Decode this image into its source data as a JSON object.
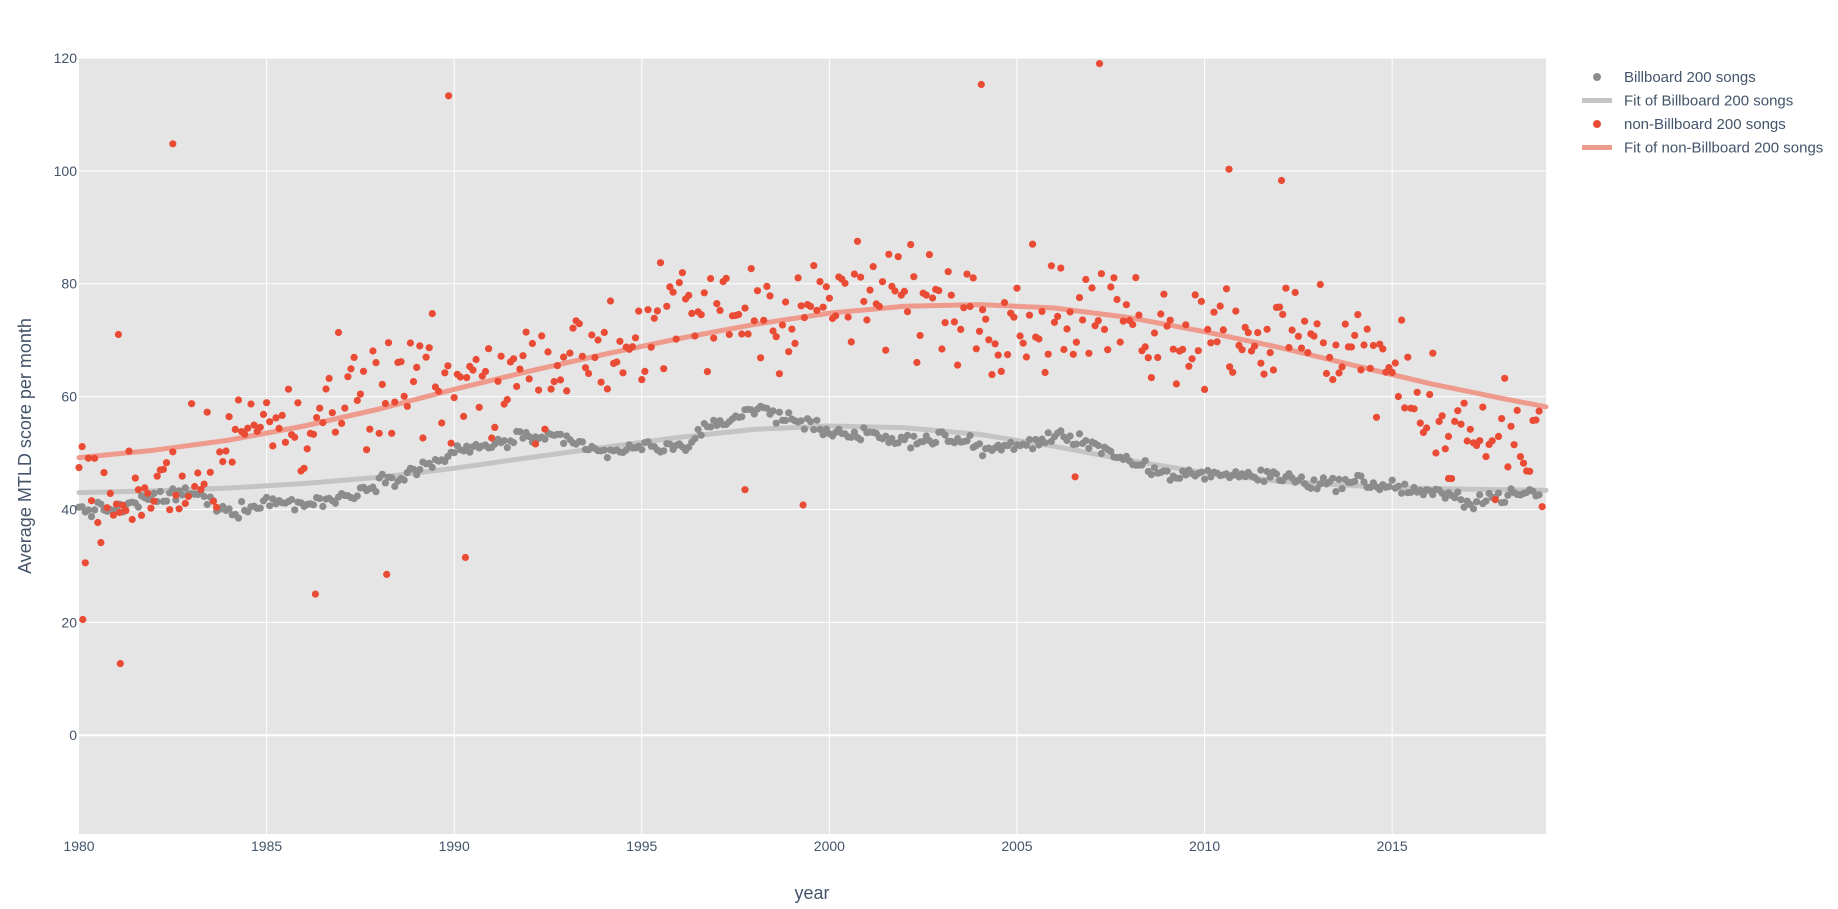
{
  "chart_data": {
    "type": "scatter",
    "xlabel": "year",
    "ylabel": "Average MTLD score per month",
    "xlim": [
      1980,
      2019.1
    ],
    "ylim": [
      -17.5,
      120
    ],
    "x_ticks": [
      "1980",
      "1985",
      "1990",
      "1995",
      "2000",
      "2005",
      "2010",
      "2015"
    ],
    "y_ticks": [
      "0",
      "20",
      "40",
      "60",
      "80",
      "100",
      "120"
    ],
    "grid": true,
    "legend_position": "top-right",
    "colors": {
      "billboard": "#8c8c8c",
      "billboard_fit": "#c4c4c4",
      "non_billboard": "#ea4b35",
      "non_billboard_fit": "#ee9a8c",
      "plot_bg": "#e5e5e5",
      "grid": "#ffffff",
      "text": "#44546a"
    },
    "series": [
      {
        "name": "Billboard 200 songs",
        "kind": "markers",
        "color": "#8c8c8c",
        "anchors": [
          [
            1980,
            40
          ],
          [
            1981,
            40
          ],
          [
            1982,
            42
          ],
          [
            1983,
            43
          ],
          [
            1984,
            39.5
          ],
          [
            1985,
            41.5
          ],
          [
            1986,
            41
          ],
          [
            1987,
            42
          ],
          [
            1988,
            45
          ],
          [
            1989,
            47
          ],
          [
            1990,
            50
          ],
          [
            1991,
            51.5
          ],
          [
            1992,
            53
          ],
          [
            1993,
            52
          ],
          [
            1994,
            50
          ],
          [
            1995,
            51
          ],
          [
            1996,
            51
          ],
          [
            1997,
            55
          ],
          [
            1998,
            58
          ],
          [
            1999,
            56
          ],
          [
            2000,
            54
          ],
          [
            2001,
            53
          ],
          [
            2002,
            52
          ],
          [
            2003,
            53
          ],
          [
            2004,
            51
          ],
          [
            2005,
            51
          ],
          [
            2006,
            53
          ],
          [
            2007,
            52
          ],
          [
            2008,
            48
          ],
          [
            2009,
            46
          ],
          [
            2010,
            46.5
          ],
          [
            2011,
            46
          ],
          [
            2012,
            46
          ],
          [
            2013,
            44.5
          ],
          [
            2014,
            45
          ],
          [
            2015,
            44
          ],
          [
            2016,
            43
          ],
          [
            2017,
            41.5
          ],
          [
            2018,
            42.5
          ],
          [
            2019.1,
            43
          ]
        ],
        "amplitude": 1.6
      },
      {
        "name": "Fit of Billboard 200 songs",
        "kind": "line",
        "color": "#c4c4c4",
        "x": [
          1980,
          1982,
          1984,
          1986,
          1988,
          1990,
          1992,
          1994,
          1996,
          1998,
          2000,
          2002,
          2004,
          2006,
          2008,
          2010,
          2012,
          2014,
          2016,
          2018,
          2019.1
        ],
        "y": [
          43,
          43.3,
          43.8,
          44.6,
          45.7,
          47.3,
          49.2,
          51,
          52.8,
          54.2,
          54.8,
          54.5,
          53.3,
          51.2,
          48.7,
          46.5,
          45,
          44.2,
          43.7,
          43.5,
          43.4
        ]
      },
      {
        "name": "non-Billboard 200 songs",
        "kind": "markers",
        "color": "#ea4b35",
        "anchors": [
          [
            1980,
            44
          ],
          [
            1981,
            40
          ],
          [
            1982,
            46
          ],
          [
            1983,
            48
          ],
          [
            1984,
            52
          ],
          [
            1985,
            55
          ],
          [
            1986,
            56
          ],
          [
            1987,
            58
          ],
          [
            1988,
            60
          ],
          [
            1989,
            62
          ],
          [
            1990,
            61
          ],
          [
            1991,
            63
          ],
          [
            1992,
            65
          ],
          [
            1993,
            67
          ],
          [
            1994,
            69
          ],
          [
            1995,
            71
          ],
          [
            1996,
            74
          ],
          [
            1997,
            74
          ],
          [
            1998,
            76
          ],
          [
            1999,
            75
          ],
          [
            2000,
            77
          ],
          [
            2001,
            77
          ],
          [
            2002,
            78
          ],
          [
            2003,
            77
          ],
          [
            2004,
            76
          ],
          [
            2005,
            75
          ],
          [
            2006,
            75
          ],
          [
            2007,
            74
          ],
          [
            2008,
            74
          ],
          [
            2009,
            72
          ],
          [
            2010,
            73
          ],
          [
            2011,
            72
          ],
          [
            2012,
            71
          ],
          [
            2013,
            70
          ],
          [
            2014,
            70
          ],
          [
            2015,
            63
          ],
          [
            2016,
            58
          ],
          [
            2017,
            55
          ],
          [
            2018,
            53
          ],
          [
            2019.1,
            50
          ]
        ],
        "amplitude": 13,
        "outliers": [
          [
            1980.1,
            20.5
          ],
          [
            1981.1,
            12.7
          ],
          [
            1981.05,
            71
          ],
          [
            1982.5,
            104.8
          ],
          [
            1986.3,
            25
          ],
          [
            1988.2,
            28.5
          ],
          [
            1990.3,
            31.5
          ],
          [
            1989.85,
            113.3
          ],
          [
            1997.75,
            43.5
          ],
          [
            1999.3,
            40.8
          ],
          [
            2004.05,
            115.3
          ],
          [
            2007.2,
            119
          ],
          [
            2010.65,
            100.3
          ],
          [
            2012.05,
            98.3
          ],
          [
            2016.5,
            45.5
          ],
          [
            2019,
            40.5
          ],
          [
            2006.55,
            45.8
          ]
        ]
      },
      {
        "name": "Fit of non-Billboard 200 songs",
        "kind": "line",
        "color": "#ee9a8c",
        "x": [
          1980,
          1982,
          1984,
          1986,
          1988,
          1990,
          1992,
          1994,
          1996,
          1998,
          2000,
          2002,
          2004,
          2006,
          2008,
          2010,
          2012,
          2014,
          2016,
          2018,
          2019.1
        ],
        "y": [
          49.2,
          50.5,
          52.3,
          54.8,
          57.8,
          61.3,
          64.5,
          67.5,
          70.3,
          72.8,
          74.8,
          76,
          76.3,
          75.7,
          74,
          71.5,
          68.7,
          65.5,
          62.3,
          59.6,
          58.2
        ]
      }
    ]
  }
}
